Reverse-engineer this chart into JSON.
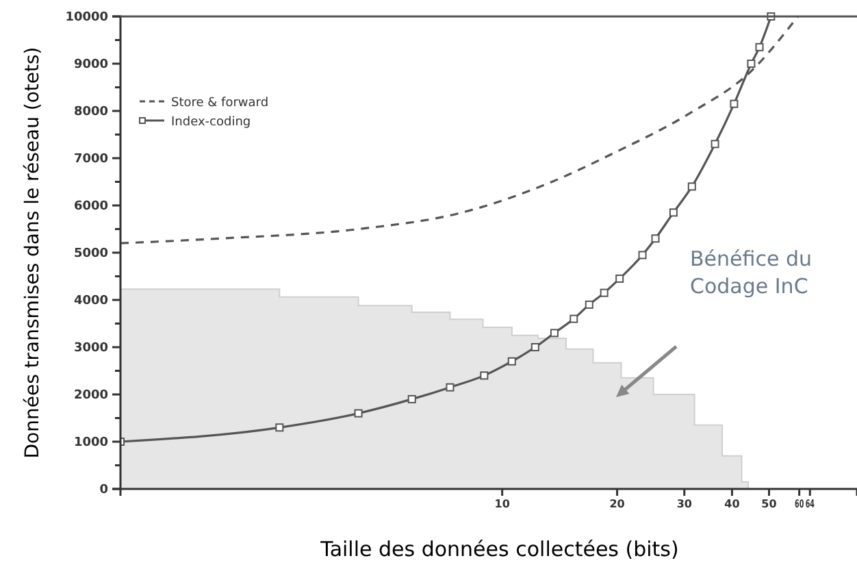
{
  "chart_data": {
    "type": "line",
    "xlabel": "Taille des données  collectées (bits)",
    "ylabel": "Données transmises dans le réseau (otets)",
    "log": "x",
    "xlim": [
      1,
      85
    ],
    "xticks": [
      10,
      20,
      30,
      40,
      50,
      60,
      64
    ],
    "ylim": [
      0,
      10000
    ],
    "yticks": [
      0,
      {
        "value": 500,
        "label": null
      },
      1000,
      {
        "value": 1500,
        "label": null
      },
      2000,
      {
        "value": 2500,
        "label": null
      },
      3000,
      {
        "value": 3500,
        "label": null
      },
      4000,
      {
        "value": 4500,
        "label": null
      },
      5000,
      {
        "value": 5500,
        "label": null
      },
      6000,
      {
        "value": 6500,
        "label": null
      },
      7000,
      {
        "value": 7500,
        "label": null
      },
      8000,
      {
        "value": 8500,
        "label": null
      },
      9000,
      {
        "value": 9500,
        "label": null
      },
      10000
    ],
    "grid": false,
    "legend": "top left",
    "series": [
      {
        "type": "area",
        "color": "#e6e6e6",
        "x": [
          1,
          2.61,
          4.2,
          5.8,
          7.3,
          8.9,
          10.6,
          12.4,
          14.7,
          17.3,
          20.5,
          24.9,
          31.9,
          37.7,
          42.4,
          44.1
        ],
        "values": [
          4230,
          4060,
          3880,
          3740,
          3590,
          3420,
          3250,
          3190,
          2960,
          2670,
          2350,
          2000,
          1350,
          700,
          150,
          0
        ]
      },
      {
        "name": "Store & forward",
        "color": "#555555",
        "line_style": "dashed",
        "marker": "none",
        "x": [
          1,
          1.82,
          4.2,
          7.85,
          13.5,
          19.5,
          31,
          45,
          59.5
        ],
        "values": [
          5200,
          5300,
          5500,
          5850,
          6500,
          7100,
          7950,
          8850,
          10000
        ]
      },
      {
        "name": "Index-coding",
        "color": "#555555",
        "line_style": "solid",
        "marker": "square",
        "x": [
          1,
          2.61,
          4.2,
          5.8,
          7.3,
          8.97,
          10.6,
          12.2,
          13.7,
          15.4,
          16.9,
          18.5,
          20.3,
          23.3,
          25.2,
          28.1,
          31.4,
          36.1,
          40.5,
          44.9,
          47.2,
          50.6
        ],
        "values": [
          1000,
          1300,
          1600,
          1900,
          2150,
          2400,
          2700,
          3000,
          3300,
          3600,
          3900,
          4150,
          4450,
          4950,
          5300,
          5850,
          6400,
          7300,
          8150,
          9000,
          9350,
          10000
        ]
      }
    ],
    "annotations": [
      "Bénéfice du Codage InC"
    ]
  }
}
